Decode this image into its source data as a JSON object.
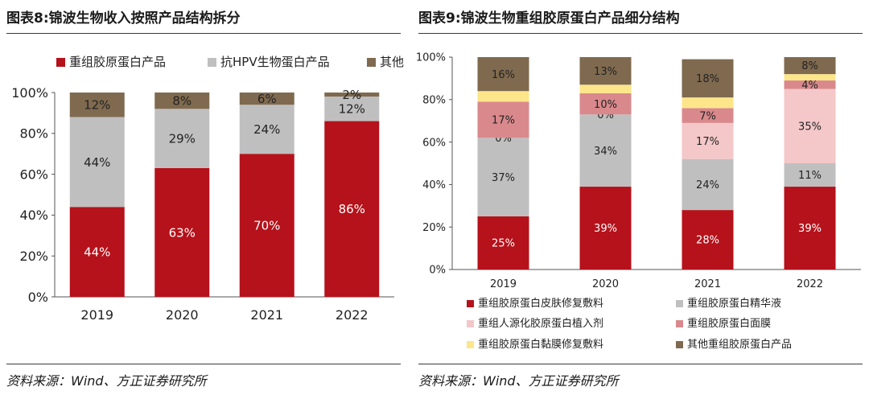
{
  "left": {
    "title": "图表8:锦波生物收入按照产品结构拆分",
    "source": "资料来源：Wind、方正证券研究所"
  },
  "right": {
    "title": "图表9:锦波生物重组胶原蛋白产品细分结构",
    "source": "资料来源：Wind、方正证券研究所"
  },
  "chart_data": [
    {
      "type": "bar",
      "stacked": true,
      "categories": [
        "2019",
        "2020",
        "2021",
        "2022"
      ],
      "series": [
        {
          "name": "重组胶原蛋白产品",
          "color": "#b5121b",
          "values": [
            44,
            63,
            70,
            86
          ],
          "labels": [
            "44%",
            "63%",
            "70%",
            "86%"
          ],
          "label_color": "#ffffff"
        },
        {
          "name": "抗HPV生物蛋白产品",
          "color": "#bfbfbf",
          "values": [
            44,
            29,
            24,
            12
          ],
          "labels": [
            "44%",
            "29%",
            "24%",
            "12%"
          ],
          "label_color": "#222222"
        },
        {
          "name": "其他",
          "color": "#7f6a4f",
          "values": [
            12,
            8,
            6,
            2
          ],
          "labels": [
            "12%",
            "8%",
            "6%",
            "2%"
          ],
          "label_color": "#222222"
        }
      ],
      "yticks": [
        "0%",
        "20%",
        "40%",
        "60%",
        "80%",
        "100%"
      ],
      "ylim": [
        0,
        100
      ],
      "legend": "top",
      "grid": false
    },
    {
      "type": "bar",
      "stacked": true,
      "categories": [
        "2019",
        "2020",
        "2021",
        "2022"
      ],
      "series": [
        {
          "name": "重组胶原蛋白皮肤修复敷料",
          "color": "#b5121b",
          "values": [
            25,
            39,
            28,
            39
          ],
          "labels": [
            "25%",
            "39%",
            "28%",
            "39%"
          ],
          "label_color": "#ffffff"
        },
        {
          "name": "重组胶原蛋白精华液",
          "color": "#bfbfbf",
          "values": [
            37,
            34,
            24,
            11
          ],
          "labels": [
            "37%",
            "34%",
            "24%",
            "11%"
          ],
          "label_color": "#222222"
        },
        {
          "name": "重组人源化胶原蛋白植入剂",
          "color": "#f4c7c8",
          "values": [
            0,
            0,
            17,
            35
          ],
          "labels": [
            "0%",
            "0%",
            "17%",
            "35%"
          ],
          "label_color": "#222222"
        },
        {
          "name": "重组胶原蛋白面膜",
          "color": "#d9898c",
          "values": [
            17,
            10,
            7,
            4
          ],
          "labels": [
            "17%",
            "10%",
            "7%",
            "4%"
          ],
          "label_color": "#222222"
        },
        {
          "name": "重组胶原蛋白黏膜修复敷料",
          "color": "#fde68a",
          "values": [
            5,
            4,
            5,
            3
          ],
          "labels": [
            "",
            "",
            "",
            ""
          ],
          "label_color": "#222222"
        },
        {
          "name": "其他重组胶原蛋白产品",
          "color": "#7f6a4f",
          "values": [
            16,
            13,
            18,
            8
          ],
          "labels": [
            "16%",
            "13%",
            "18%",
            "8%"
          ],
          "label_color": "#222222"
        }
      ],
      "yticks": [
        "0%",
        "20%",
        "40%",
        "60%",
        "80%",
        "100%"
      ],
      "ylim": [
        0,
        100
      ],
      "legend": "bottom",
      "grid": false
    }
  ]
}
